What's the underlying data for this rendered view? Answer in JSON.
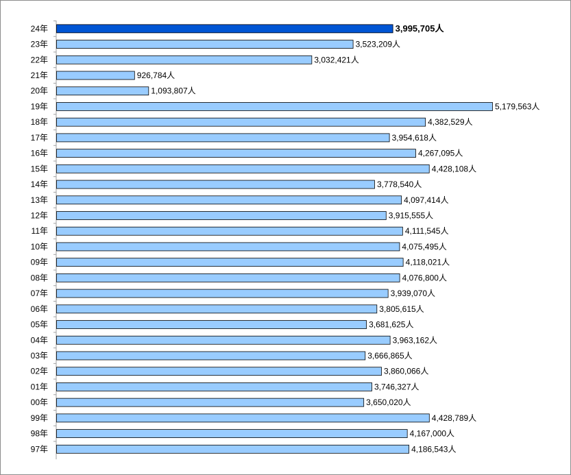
{
  "chart_data": {
    "type": "bar",
    "orientation": "horizontal",
    "categories": [
      "24年",
      "23年",
      "22年",
      "21年",
      "20年",
      "19年",
      "18年",
      "17年",
      "16年",
      "15年",
      "14年",
      "13年",
      "12年",
      "11年",
      "10年",
      "09年",
      "08年",
      "07年",
      "06年",
      "05年",
      "04年",
      "03年",
      "02年",
      "01年",
      "00年",
      "99年",
      "98年",
      "97年"
    ],
    "values": [
      3995705,
      3523209,
      3032421,
      926784,
      1093807,
      5179563,
      4382529,
      3954618,
      4267095,
      4428108,
      3778540,
      4097414,
      3915555,
      4111545,
      4075495,
      4118021,
      4076800,
      3939070,
      3805615,
      3681625,
      3963162,
      3666865,
      3860066,
      3746327,
      3650020,
      4428789,
      4167000,
      4186543
    ],
    "value_labels": [
      "3,995,705人",
      "3,523,209人",
      "3,032,421人",
      "926,784人",
      "1,093,807人",
      "5,179,563人",
      "4,382,529人",
      "3,954,618人",
      "4,267,095人",
      "4,428,108人",
      "3,778,540人",
      "4,097,414人",
      "3,915,555人",
      "4,111,545人",
      "4,075,495人",
      "4,118,021人",
      "4,076,800人",
      "3,939,070人",
      "3,805,615人",
      "3,681,625人",
      "3,963,162人",
      "3,666,865人",
      "3,860,066人",
      "3,746,327人",
      "3,650,020人",
      "4,428,789人",
      "4,167,000人",
      "4,186,543人"
    ],
    "highlight_index": 0,
    "xlim": [
      0,
      5500000
    ],
    "grid": false,
    "colors": {
      "bar_fill": "#99ccff",
      "bar_stroke": "#000000",
      "highlight_fill": "#0055d4",
      "axis": "#a0a0a0"
    }
  }
}
